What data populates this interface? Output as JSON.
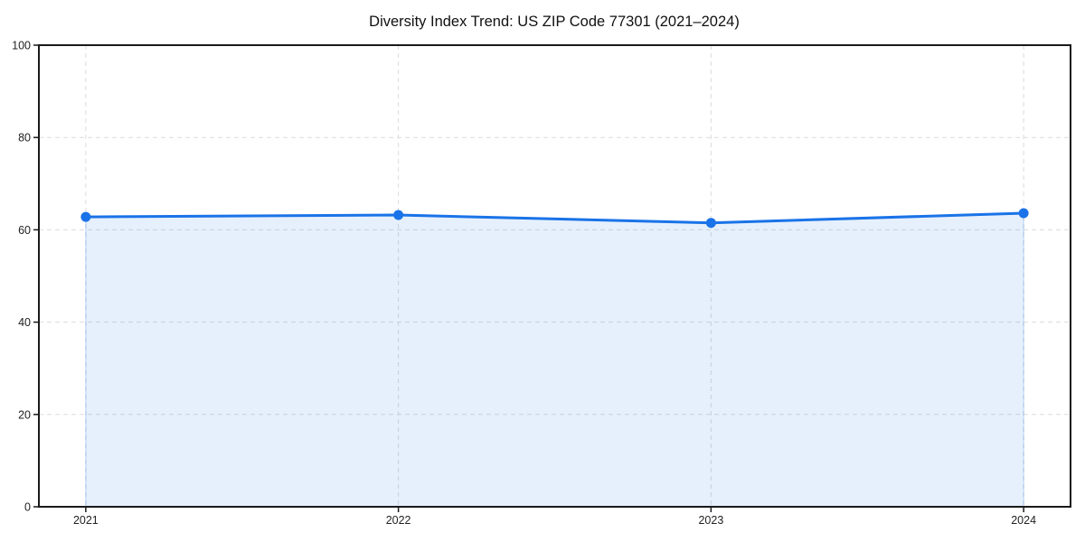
{
  "chart_data": {
    "type": "area",
    "title": "Diversity Index Trend: US ZIP Code 77301 (2021–2024)",
    "x": [
      2021,
      2022,
      2023,
      2024
    ],
    "xtick_labels": [
      "2021",
      "2022",
      "2023",
      "2024"
    ],
    "series": [
      {
        "name": "Diversity Index",
        "values": [
          62.8,
          63.2,
          61.5,
          63.6
        ]
      }
    ],
    "xlabel": "",
    "ylabel": "",
    "xlim": [
      2020.85,
      2024.15
    ],
    "ylim": [
      0,
      100
    ],
    "yticks": [
      0,
      20,
      40,
      60,
      80,
      100
    ],
    "grid": true,
    "grid_style": "dashed",
    "legend_position": "none",
    "colors": {
      "line": "#1a73e8",
      "marker": "#1a73e8",
      "fill": "rgba(26,115,232,0.11)",
      "fill_edge": "rgba(26,115,232,0.28)",
      "axis": "#1a1a1a",
      "grid": "#dcdcdc",
      "title_text": "#111111",
      "tick_text": "#222222",
      "background": "#ffffff"
    }
  }
}
